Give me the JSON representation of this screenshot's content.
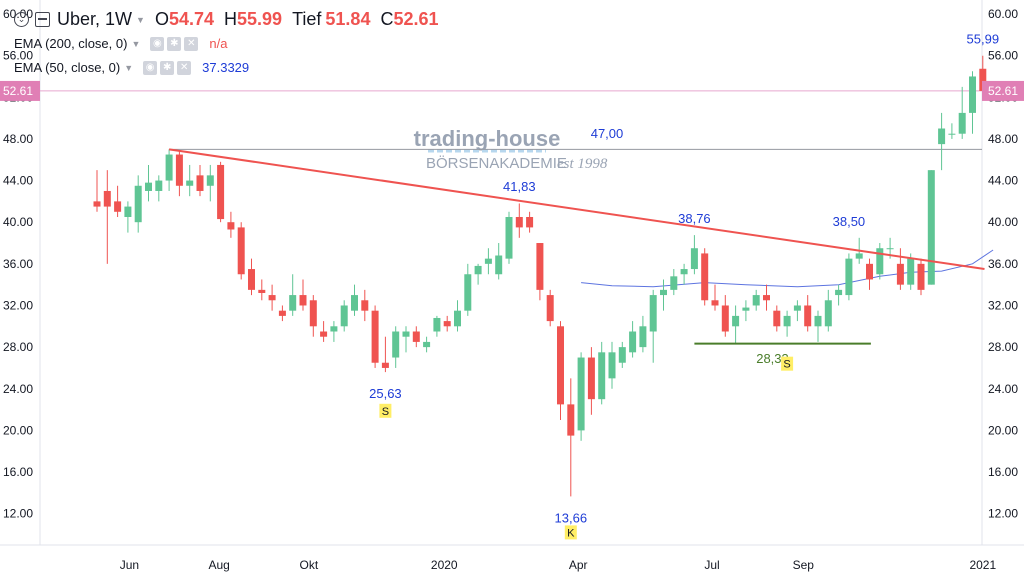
{
  "legend": {
    "symbol": "Uber, 1W",
    "o_label": "O",
    "o": "54.74",
    "h_label": "H",
    "h": "55.99",
    "l_label": "Tief",
    "l": "51.84",
    "c_label": "C",
    "c": "52.61",
    "ema200_label": "EMA (200, close, 0)",
    "ema200_value": "n/a",
    "ema50_label": "EMA (50, close, 0)",
    "ema50_value": "37.3329"
  },
  "colors": {
    "up": "#5fc594",
    "down": "#ef5350",
    "trendline": "#ef5350",
    "ema": "#5d74e0",
    "support": "#4a7d2a",
    "blue_label": "#1e3cd6",
    "price_tag": "#e07fb5"
  },
  "watermark": {
    "line1": "trading-house",
    "line2": "BÖRSENAKADEMIE",
    "line3": "est 1998"
  },
  "chart_data": {
    "type": "candlestick",
    "timeframe": "1W",
    "last_price_tag": "52.61",
    "y_ticks": [
      "60.00",
      "56.00",
      "52.00",
      "48.00",
      "44.00",
      "40.00",
      "36.00",
      "32.00",
      "28.00",
      "24.00",
      "20.00",
      "16.00",
      "12.00"
    ],
    "x_labels": [
      "Jun",
      "Aug",
      "Okt",
      "2020",
      "Apr",
      "Jul",
      "Sep",
      "2021"
    ],
    "ylim": [
      10.5,
      61.5
    ],
    "candles": [
      {
        "x": "2019-05-10",
        "o": 42.0,
        "h": 45.0,
        "l": 41.0,
        "c": 41.5
      },
      {
        "x": "2019-05-17",
        "o": 43.0,
        "h": 45.0,
        "l": 36.0,
        "c": 41.5
      },
      {
        "x": "2019-05-24",
        "o": 42.0,
        "h": 43.5,
        "l": 40.5,
        "c": 41.0
      },
      {
        "x": "2019-05-31",
        "o": 40.5,
        "h": 42.0,
        "l": 39.0,
        "c": 41.5
      },
      {
        "x": "2019-06-07",
        "o": 40.0,
        "h": 44.5,
        "l": 39.0,
        "c": 43.5
      },
      {
        "x": "2019-06-14",
        "o": 43.0,
        "h": 45.5,
        "l": 42.0,
        "c": 43.8
      },
      {
        "x": "2019-06-21",
        "o": 43.0,
        "h": 44.5,
        "l": 42.0,
        "c": 44.0
      },
      {
        "x": "2019-06-28",
        "o": 44.0,
        "h": 47.0,
        "l": 43.0,
        "c": 46.5
      },
      {
        "x": "2019-07-05",
        "o": 46.5,
        "h": 46.8,
        "l": 42.5,
        "c": 43.5
      },
      {
        "x": "2019-07-12",
        "o": 43.5,
        "h": 45.5,
        "l": 42.5,
        "c": 44.0
      },
      {
        "x": "2019-07-19",
        "o": 44.5,
        "h": 45.5,
        "l": 42.5,
        "c": 43.0
      },
      {
        "x": "2019-07-26",
        "o": 43.5,
        "h": 45.5,
        "l": 42.0,
        "c": 44.5
      },
      {
        "x": "2019-08-02",
        "o": 45.5,
        "h": 45.8,
        "l": 40.0,
        "c": 40.3
      },
      {
        "x": "2019-08-09",
        "o": 40.0,
        "h": 41.0,
        "l": 38.5,
        "c": 39.3
      },
      {
        "x": "2019-08-16",
        "o": 39.5,
        "h": 40.0,
        "l": 34.5,
        "c": 35.0
      },
      {
        "x": "2019-08-23",
        "o": 35.5,
        "h": 36.5,
        "l": 33.0,
        "c": 33.5
      },
      {
        "x": "2019-08-30",
        "o": 33.5,
        "h": 34.5,
        "l": 32.5,
        "c": 33.2
      },
      {
        "x": "2019-09-06",
        "o": 33.0,
        "h": 34.0,
        "l": 31.5,
        "c": 32.5
      },
      {
        "x": "2019-09-13",
        "o": 31.5,
        "h": 32.0,
        "l": 30.5,
        "c": 31.0
      },
      {
        "x": "2019-09-20",
        "o": 31.5,
        "h": 35.0,
        "l": 31.0,
        "c": 33.0
      },
      {
        "x": "2019-09-27",
        "o": 33.0,
        "h": 34.5,
        "l": 31.5,
        "c": 32.0
      },
      {
        "x": "2019-10-04",
        "o": 32.5,
        "h": 33.0,
        "l": 29.0,
        "c": 30.0
      },
      {
        "x": "2019-10-11",
        "o": 29.5,
        "h": 30.5,
        "l": 28.5,
        "c": 29.0
      },
      {
        "x": "2019-10-18",
        "o": 29.5,
        "h": 30.5,
        "l": 28.5,
        "c": 30.0
      },
      {
        "x": "2019-10-25",
        "o": 30.0,
        "h": 32.5,
        "l": 29.5,
        "c": 32.0
      },
      {
        "x": "2019-11-01",
        "o": 31.5,
        "h": 34.0,
        "l": 31.0,
        "c": 33.0
      },
      {
        "x": "2019-11-08",
        "o": 32.5,
        "h": 33.5,
        "l": 30.5,
        "c": 31.5
      },
      {
        "x": "2019-11-15",
        "o": 31.5,
        "h": 32.0,
        "l": 26.0,
        "c": 26.5
      },
      {
        "x": "2019-11-22",
        "o": 26.5,
        "h": 29.0,
        "l": 25.6,
        "c": 26.0
      },
      {
        "x": "2019-11-29",
        "o": 27.0,
        "h": 30.0,
        "l": 26.0,
        "c": 29.5
      },
      {
        "x": "2019-12-06",
        "o": 29.0,
        "h": 30.0,
        "l": 27.5,
        "c": 29.5
      },
      {
        "x": "2019-12-13",
        "o": 29.5,
        "h": 30.0,
        "l": 28.0,
        "c": 28.5
      },
      {
        "x": "2019-12-20",
        "o": 28.0,
        "h": 29.0,
        "l": 27.5,
        "c": 28.5
      },
      {
        "x": "2019-12-27",
        "o": 29.5,
        "h": 31.0,
        "l": 29.0,
        "c": 30.8
      },
      {
        "x": "2020-01-03",
        "o": 30.5,
        "h": 31.0,
        "l": 29.5,
        "c": 30.0
      },
      {
        "x": "2020-01-10",
        "o": 30.0,
        "h": 32.5,
        "l": 29.5,
        "c": 31.5
      },
      {
        "x": "2020-01-17",
        "o": 31.5,
        "h": 36.0,
        "l": 31.0,
        "c": 35.0
      },
      {
        "x": "2020-01-24",
        "o": 35.0,
        "h": 36.0,
        "l": 34.0,
        "c": 35.8
      },
      {
        "x": "2020-01-31",
        "o": 36.0,
        "h": 37.5,
        "l": 35.0,
        "c": 36.5
      },
      {
        "x": "2020-02-07",
        "o": 35.0,
        "h": 38.0,
        "l": 34.5,
        "c": 36.8
      },
      {
        "x": "2020-02-14",
        "o": 36.5,
        "h": 41.0,
        "l": 36.0,
        "c": 40.5
      },
      {
        "x": "2020-02-21",
        "o": 40.5,
        "h": 41.8,
        "l": 38.5,
        "c": 39.5
      },
      {
        "x": "2020-02-28",
        "o": 40.5,
        "h": 41.0,
        "l": 39.0,
        "c": 39.5
      },
      {
        "x": "2020-03-06",
        "o": 38.0,
        "h": 38.0,
        "l": 32.5,
        "c": 33.5
      },
      {
        "x": "2020-03-13",
        "o": 33.0,
        "h": 33.5,
        "l": 30.0,
        "c": 30.5
      },
      {
        "x": "2020-03-20",
        "o": 30.0,
        "h": 30.5,
        "l": 21.0,
        "c": 22.5
      },
      {
        "x": "2020-03-27",
        "o": 22.5,
        "h": 25.0,
        "l": 13.66,
        "c": 19.5
      },
      {
        "x": "2020-04-03",
        "o": 20.0,
        "h": 27.5,
        "l": 19.0,
        "c": 27.0
      },
      {
        "x": "2020-04-10",
        "o": 27.0,
        "h": 28.0,
        "l": 21.5,
        "c": 23.0
      },
      {
        "x": "2020-04-17",
        "o": 23.0,
        "h": 28.5,
        "l": 22.5,
        "c": 27.5
      },
      {
        "x": "2020-04-24",
        "o": 25.0,
        "h": 28.5,
        "l": 24.0,
        "c": 27.5
      },
      {
        "x": "2020-05-01",
        "o": 26.5,
        "h": 28.5,
        "l": 26.0,
        "c": 28.0
      },
      {
        "x": "2020-05-08",
        "o": 27.5,
        "h": 30.5,
        "l": 27.0,
        "c": 29.5
      },
      {
        "x": "2020-05-15",
        "o": 28.0,
        "h": 31.0,
        "l": 27.5,
        "c": 30.0
      },
      {
        "x": "2020-05-22",
        "o": 29.5,
        "h": 33.5,
        "l": 26.5,
        "c": 33.0
      },
      {
        "x": "2020-05-29",
        "o": 33.0,
        "h": 34.5,
        "l": 31.5,
        "c": 33.5
      },
      {
        "x": "2020-06-05",
        "o": 33.5,
        "h": 35.5,
        "l": 33.0,
        "c": 34.8
      },
      {
        "x": "2020-06-12",
        "o": 35.0,
        "h": 36.0,
        "l": 34.0,
        "c": 35.5
      },
      {
        "x": "2020-06-19",
        "o": 35.5,
        "h": 38.76,
        "l": 35.0,
        "c": 37.5
      },
      {
        "x": "2020-06-26",
        "o": 37.0,
        "h": 37.5,
        "l": 32.0,
        "c": 32.5
      },
      {
        "x": "2020-07-03",
        "o": 32.5,
        "h": 34.0,
        "l": 31.5,
        "c": 32.0
      },
      {
        "x": "2020-07-10",
        "o": 32.0,
        "h": 33.0,
        "l": 29.0,
        "c": 29.5
      },
      {
        "x": "2020-07-17",
        "o": 30.0,
        "h": 32.0,
        "l": 28.33,
        "c": 31.0
      },
      {
        "x": "2020-07-24",
        "o": 31.5,
        "h": 32.5,
        "l": 30.5,
        "c": 31.8
      },
      {
        "x": "2020-07-31",
        "o": 32.0,
        "h": 33.5,
        "l": 31.5,
        "c": 33.0
      },
      {
        "x": "2020-08-07",
        "o": 33.0,
        "h": 34.0,
        "l": 31.5,
        "c": 32.5
      },
      {
        "x": "2020-08-14",
        "o": 31.5,
        "h": 32.0,
        "l": 29.5,
        "c": 30.0
      },
      {
        "x": "2020-08-21",
        "o": 30.0,
        "h": 31.5,
        "l": 29.0,
        "c": 31.0
      },
      {
        "x": "2020-08-28",
        "o": 31.5,
        "h": 32.5,
        "l": 30.5,
        "c": 32.0
      },
      {
        "x": "2020-09-04",
        "o": 32.0,
        "h": 33.0,
        "l": 29.5,
        "c": 30.0
      },
      {
        "x": "2020-09-11",
        "o": 30.0,
        "h": 31.5,
        "l": 28.5,
        "c": 31.0
      },
      {
        "x": "2020-09-18",
        "o": 30.0,
        "h": 33.5,
        "l": 29.5,
        "c": 32.5
      },
      {
        "x": "2020-09-25",
        "o": 33.0,
        "h": 34.0,
        "l": 32.0,
        "c": 33.5
      },
      {
        "x": "2020-10-02",
        "o": 33.0,
        "h": 37.0,
        "l": 32.5,
        "c": 36.5
      },
      {
        "x": "2020-10-09",
        "o": 36.5,
        "h": 38.5,
        "l": 36.0,
        "c": 37.0
      },
      {
        "x": "2020-10-16",
        "o": 36.0,
        "h": 36.5,
        "l": 33.5,
        "c": 34.5
      },
      {
        "x": "2020-10-23",
        "o": 35.0,
        "h": 38.0,
        "l": 34.5,
        "c": 37.5
      },
      {
        "x": "2020-10-30",
        "o": 37.5,
        "h": 38.5,
        "l": 36.5,
        "c": 37.5
      },
      {
        "x": "2020-11-06",
        "o": 36.0,
        "h": 37.5,
        "l": 33.5,
        "c": 34.0
      },
      {
        "x": "2020-11-13",
        "o": 34.0,
        "h": 37.0,
        "l": 33.5,
        "c": 36.5
      },
      {
        "x": "2020-11-20",
        "o": 36.0,
        "h": 36.5,
        "l": 33.0,
        "c": 33.5
      },
      {
        "x": "2020-11-27",
        "o": 34.0,
        "h": 45.0,
        "l": 34.0,
        "c": 45.0
      },
      {
        "x": "2020-12-04",
        "o": 47.5,
        "h": 50.5,
        "l": 45.0,
        "c": 49.0
      },
      {
        "x": "2020-12-11",
        "o": 48.5,
        "h": 49.5,
        "l": 48.0,
        "c": 48.5
      },
      {
        "x": "2020-12-18",
        "o": 48.5,
        "h": 53.0,
        "l": 48.0,
        "c": 50.5
      },
      {
        "x": "2020-12-25",
        "o": 50.5,
        "h": 54.5,
        "l": 48.5,
        "c": 54.0
      },
      {
        "x": "2021-01-01",
        "o": 54.74,
        "h": 55.99,
        "l": 51.84,
        "c": 52.61
      }
    ],
    "ema50": [
      [
        "2020-04-03",
        34.2
      ],
      [
        "2020-04-24",
        33.9
      ],
      [
        "2020-05-22",
        33.8
      ],
      [
        "2020-06-26",
        34.2
      ],
      [
        "2020-07-24",
        34.0
      ],
      [
        "2020-08-28",
        33.8
      ],
      [
        "2020-09-25",
        34.0
      ],
      [
        "2020-10-23",
        34.8
      ],
      [
        "2020-11-13",
        35.2
      ],
      [
        "2020-12-04",
        35.3
      ],
      [
        "2020-12-25",
        36.0
      ],
      [
        "2021-01-08",
        37.33
      ]
    ],
    "trendline": [
      [
        "2019-06-28",
        47.0
      ],
      [
        "2020-12-25",
        35.5
      ]
    ],
    "resistance_line": {
      "from": "2019-06-28",
      "y": 47.0,
      "label": "47,00"
    },
    "support_line": {
      "from": "2020-06-19",
      "to": "2020-10-02",
      "y": 28.33,
      "label": "28,33"
    },
    "annotations": [
      {
        "x": "2019-11-22",
        "y": 25.63,
        "label": "25,63",
        "pos": "below",
        "color": "blue"
      },
      {
        "x": "2020-02-21",
        "y": 41.83,
        "label": "41,83",
        "pos": "above",
        "color": "blue"
      },
      {
        "x": "2020-03-27",
        "y": 13.66,
        "label": "13,66",
        "pos": "below",
        "color": "blue"
      },
      {
        "x": "2020-06-19",
        "y": 38.76,
        "label": "38,76",
        "pos": "above",
        "color": "blue"
      },
      {
        "x": "2020-10-02",
        "y": 38.5,
        "label": "38,50",
        "pos": "above",
        "color": "blue"
      },
      {
        "x": "2021-01-01",
        "y": 55.99,
        "label": "55,99",
        "pos": "above",
        "color": "blue"
      }
    ],
    "markers": [
      {
        "x": "2019-11-22",
        "y": 25.63,
        "label": "S"
      },
      {
        "x": "2020-03-27",
        "y": 13.66,
        "label": "K"
      },
      {
        "x": "2020-08-21",
        "y": 28.33,
        "label": "S"
      }
    ]
  }
}
